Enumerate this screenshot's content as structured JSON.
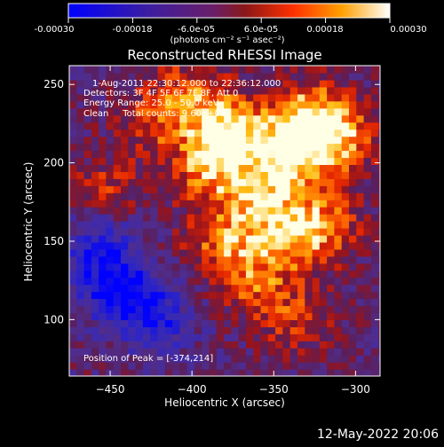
{
  "colorbar": {
    "tick_labels": [
      "-0.00030",
      "-0.00018",
      "-6.0e-05",
      "6.0e-05",
      "0.00018",
      "0.00030"
    ],
    "units": "(photons cm⁻² s⁻¹ asec⁻²)",
    "range": [
      -0.0003,
      0.0003
    ]
  },
  "title": "Reconstructed RHESSI Image",
  "annotations": {
    "time_range": "1-Aug-2011 22:30:12.000 to 22:36:12.000",
    "detectors": "Detectors: 3F 4F 5F 6F 7F 8F, Att 0",
    "energy_range": "Energy Range: 25.0 - 50.0 keV",
    "method_counts": "Clean     Total counts: 9.60e+03",
    "peak": "Position of Peak = [-374,214]"
  },
  "footer": {
    "timestamp": "12-May-2022 20:06"
  },
  "chart_data": {
    "type": "heatmap",
    "title": "Reconstructed RHESSI Image",
    "xlabel": "Heliocentric X (arcsec)",
    "ylabel": "Heliocentric Y (arcsec)",
    "xlim": [
      -475,
      -285
    ],
    "ylim": [
      64,
      262
    ],
    "xticks": [
      -450,
      -400,
      -350,
      -300
    ],
    "yticks": [
      100,
      150,
      200,
      250
    ],
    "colormap": "blue-purple-red-yellow-white (RHESSI)",
    "peak": [
      -374,
      214
    ],
    "bright_sources": [
      {
        "x": -380,
        "y": 218,
        "level": 1.0
      },
      {
        "x": -345,
        "y": 204,
        "level": 0.95
      },
      {
        "x": -330,
        "y": 228,
        "level": 0.85
      },
      {
        "x": -312,
        "y": 212,
        "level": 0.75
      },
      {
        "x": -392,
        "y": 195,
        "level": 0.72
      },
      {
        "x": -360,
        "y": 175,
        "level": 0.68
      },
      {
        "x": -342,
        "y": 150,
        "level": 0.72
      },
      {
        "x": -320,
        "y": 160,
        "level": 0.62
      },
      {
        "x": -385,
        "y": 150,
        "level": 0.6
      },
      {
        "x": -368,
        "y": 125,
        "level": 0.55
      },
      {
        "x": -340,
        "y": 100,
        "level": 0.5
      },
      {
        "x": -425,
        "y": 225,
        "level": 0.55
      },
      {
        "x": -400,
        "y": 245,
        "level": 0.5
      },
      {
        "x": -455,
        "y": 180,
        "level": 0.45
      }
    ],
    "dark_regions": [
      {
        "x": -450,
        "y": 120,
        "level": -0.9
      },
      {
        "x": -425,
        "y": 100,
        "level": -0.7
      },
      {
        "x": -460,
        "y": 150,
        "level": -0.5
      }
    ],
    "grid": false
  }
}
